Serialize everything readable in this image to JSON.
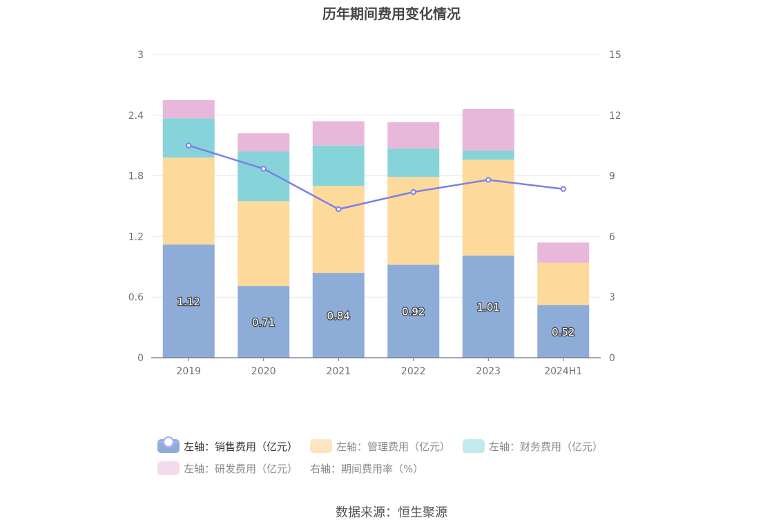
{
  "chart_data": {
    "type": "bar",
    "title": "历年期间费用变化情况",
    "categories": [
      "2019",
      "2020",
      "2021",
      "2022",
      "2023",
      "2024H1"
    ],
    "left_axis": {
      "ylim": [
        0,
        3
      ],
      "ticks": [
        "0",
        "0.6",
        "1.2",
        "1.8",
        "2.4",
        "3"
      ]
    },
    "right_axis": {
      "ylim": [
        0,
        15
      ],
      "ticks": [
        "0",
        "3",
        "6",
        "9",
        "12",
        "15"
      ]
    },
    "series": [
      {
        "name": "左轴：销售费用（亿元）",
        "axis": "left",
        "type": "bar",
        "stack": "total",
        "color": "#8eacd8",
        "values": [
          1.12,
          0.71,
          0.84,
          0.92,
          1.01,
          0.52
        ],
        "labels": [
          "1.12",
          "0.71",
          "0.84",
          "0.92",
          "1.01",
          "0.52"
        ]
      },
      {
        "name": "左轴：管理费用（亿元）",
        "axis": "left",
        "type": "bar",
        "stack": "total",
        "color": "#fed99c",
        "values": [
          0.86,
          0.84,
          0.86,
          0.87,
          0.95,
          0.42
        ]
      },
      {
        "name": "左轴：财务费用（亿元）",
        "axis": "left",
        "type": "bar",
        "stack": "total",
        "color": "#86d4d9",
        "values": [
          0.39,
          0.49,
          0.4,
          0.28,
          0.09,
          0.0
        ]
      },
      {
        "name": "左轴：研发费用（亿元）",
        "axis": "left",
        "type": "bar",
        "stack": "total",
        "color": "#e8b8da",
        "values": [
          0.18,
          0.18,
          0.24,
          0.26,
          0.41,
          0.2
        ]
      },
      {
        "name": "右轴：期间费用率（%）",
        "axis": "right",
        "type": "line",
        "color": "#7b7fe8",
        "values": [
          10.5,
          9.35,
          7.35,
          8.2,
          8.8,
          8.35
        ]
      }
    ],
    "grid": true,
    "legend_position": "bottom"
  },
  "legend": {
    "colors": [
      "#8eacd8",
      "#fde5c0",
      "#c2e9ec",
      "#f3dbec",
      "#aeb2f0"
    ],
    "dimmed": [
      false,
      true,
      true,
      true,
      true
    ]
  },
  "footer": {
    "source": "数据来源：恒生聚源"
  }
}
